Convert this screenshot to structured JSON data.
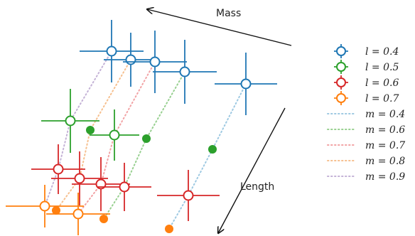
{
  "chart_data": {
    "type": "scatter",
    "title": "",
    "xlabel": "",
    "ylabel": "",
    "grid": false,
    "legend_placement": "right",
    "annotations": [
      {
        "text": "Mass",
        "arrow": true
      },
      {
        "text": "Length",
        "arrow": true
      }
    ],
    "colors": {
      "l=0.4": "#1f77b4",
      "l=0.5": "#2ca02c",
      "l=0.6": "#d62728",
      "l=0.7": "#ff7f0e",
      "m=0.4": "#9ec9e2",
      "m=0.6": "#98d090",
      "m=0.7": "#f2a3a5",
      "m=0.8": "#f6c08f",
      "m=0.9": "#c4b2d6"
    },
    "legend": [
      {
        "label": "l = 0.4",
        "kind": "marker",
        "color": "#1f77b4"
      },
      {
        "label": "l = 0.5",
        "kind": "marker",
        "color": "#2ca02c"
      },
      {
        "label": "l = 0.6",
        "kind": "marker",
        "color": "#d62728"
      },
      {
        "label": "l = 0.7",
        "kind": "marker",
        "color": "#ff7f0e"
      },
      {
        "label": "m = 0.4",
        "kind": "line",
        "color": "#9ec9e2"
      },
      {
        "label": "m = 0.6",
        "kind": "line",
        "color": "#98d090"
      },
      {
        "label": "m = 0.7",
        "kind": "line",
        "color": "#f2a3a5"
      },
      {
        "label": "m = 0.8",
        "kind": "line",
        "color": "#f6c08f"
      },
      {
        "label": "m = 0.9",
        "kind": "line",
        "color": "#c4b2d6"
      }
    ],
    "series": [
      {
        "l": 0.4,
        "color": "#1f77b4",
        "points": [
          {
            "x": 157,
            "y": 72,
            "ex": 45,
            "ey": 44,
            "m": 0.9
          },
          {
            "x": 184,
            "y": 84,
            "ex": 38,
            "ey": 38,
            "m": 0.8
          },
          {
            "x": 218,
            "y": 87,
            "ex": 45,
            "ey": 44,
            "m": 0.7
          },
          {
            "x": 260,
            "y": 101,
            "ex": 45,
            "ey": 45,
            "m": 0.6
          },
          {
            "x": 346,
            "y": 118,
            "ex": 44,
            "ey": 44,
            "m": 0.4
          }
        ]
      },
      {
        "l": 0.5,
        "color": "#2ca02c",
        "points": [
          {
            "x": 99,
            "y": 170,
            "ex": 41,
            "ey": 45,
            "m": 0.9
          },
          {
            "x": 127,
            "y": 183,
            "filled": true,
            "m": 0.8
          },
          {
            "x": 161,
            "y": 190,
            "ex": 35,
            "ey": 36,
            "m": 0.7
          },
          {
            "x": 206,
            "y": 195,
            "filled": true,
            "m": 0.6
          },
          {
            "x": 299,
            "y": 210,
            "filled": true,
            "m": 0.4
          }
        ]
      },
      {
        "l": 0.6,
        "color": "#d62728",
        "points": [
          {
            "x": 82,
            "y": 238,
            "ex": 38,
            "ey": 35,
            "m": 0.9
          },
          {
            "x": 112,
            "y": 251,
            "ex": 40,
            "ey": 38,
            "m": 0.8
          },
          {
            "x": 142,
            "y": 259,
            "ex": 41,
            "ey": 38,
            "m": 0.7
          },
          {
            "x": 175,
            "y": 263,
            "ex": 38,
            "ey": 34,
            "m": 0.6
          },
          {
            "x": 265,
            "y": 275,
            "ex": 44,
            "ey": 36,
            "m": 0.4
          }
        ]
      },
      {
        "l": 0.7,
        "color": "#ff7f0e",
        "points": [
          {
            "x": 63,
            "y": 290,
            "ex": 55,
            "ey": 30,
            "m": 0.9
          },
          {
            "x": 79,
            "y": 296,
            "filled": true,
            "m": 0.8
          },
          {
            "x": 110,
            "y": 301,
            "ex": 45,
            "ey": 30,
            "m": 0.7
          },
          {
            "x": 146,
            "y": 308,
            "filled": true,
            "m": 0.6
          },
          {
            "x": 238,
            "y": 322,
            "filled": true,
            "m": 0.4
          }
        ]
      }
    ]
  }
}
